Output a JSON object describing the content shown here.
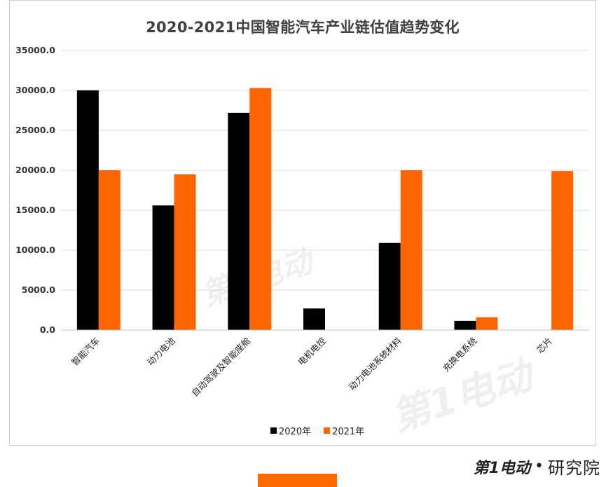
{
  "chart_data": {
    "type": "bar",
    "title": "2020-2021中国智能汽车产业链估值趋势变化",
    "categories": [
      "智能汽车",
      "动力电池",
      "自动驾驶及智能座舱",
      "电机电控",
      "动力电池系统材料",
      "充换电系统",
      "芯片"
    ],
    "series": [
      {
        "name": "2020年",
        "color": "#000000",
        "values": [
          30000,
          15600,
          27200,
          2700,
          10900,
          1150,
          0
        ]
      },
      {
        "name": "2021年",
        "color": "#ff6600",
        "values": [
          20000,
          19500,
          30300,
          0,
          20000,
          1600,
          19900
        ]
      }
    ],
    "ylim": [
      0,
      35000
    ],
    "yticks": [
      "0.0",
      "5000.0",
      "10000.0",
      "15000.0",
      "20000.0",
      "25000.0",
      "30000.0",
      "35000.0"
    ],
    "grid": true,
    "legend_position": "bottom"
  },
  "watermark": {
    "big": "第1电动",
    "small": "第1电动"
  },
  "brand": {
    "logo": "第1电动",
    "dot": "•",
    "text": "研究院"
  },
  "colors": {
    "accent": "#ff6a00"
  }
}
